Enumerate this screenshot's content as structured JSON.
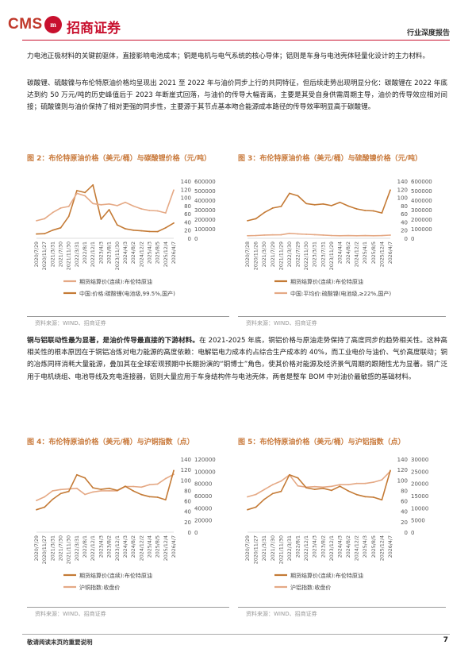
{
  "header": {
    "logo_latin": "CMS",
    "logo_badge": "m",
    "logo_cn": "招商证券",
    "report_type": "行业深度报告"
  },
  "paragraphs": {
    "p1": "力电池正极材料的关键前驱体，直接影响电池成本；铜是电机与电气系统的核心导体；铝则是车身与电池壳体轻量化设计的主力材料。",
    "p2": "碳酸锂、硫酸镍与布伦特原油价格均呈现出 2021 至 2022 年与油价同步上行的共同特征，但后续走势出现明显分化：碳酸锂在 2022 年底达到约 50 万元/吨的历史峰值后于 2023 年断崖式回落，与油价的传导大幅背离，主要是其受自身供需周期主导，油价的传导效应相对间接；硫酸镍则与油价保持了相对更强的同步性，主要源于其节点基本吻合能源成本路径的传导效率明显高于碳酸锂。",
    "p3_lead": "铜与铝联动性最为显著，是油价传导最直接的下游材料。",
    "p3": "在 2021-2025 年底，铜铝价格与原油走势保持了高度同步的趋势相关性。这种高相关性的根本原因在于铜铝冶炼对电力能源的高度依赖：电解铝电力成本约占综合生产成本的 40%，而工业电价与油价、气价高度联动；铜的冶炼同样消耗大量能源，叠加其在全球宏观预期中长期扮演的“铜博士”角色，使其价格对能源及经济景气周期的跟随性尤为显著。铜广泛用于电机绕组、电池导线及充电连接器，铝则大量应用于车身结构件与电池壳体，两者是整车 BOM 中对油价最敏感的基础材料。"
  },
  "figures": [
    {
      "title": "图 2：布伦特原油价格（美元/桶）与碳酸锂价格（元/吨）",
      "source": "资料来源：WIND、招商证券",
      "legend": [
        "期货结算价(连续):布伦特原油",
        "中国:价格:碳酸锂(电池级,99.5%,国产)"
      ],
      "colors": {
        "oil": "#e5a985",
        "other": "#c47a35"
      }
    },
    {
      "title": "图 3：布伦特原油价格（美元/桶）与硫酸镍价格（元/吨）",
      "source": "资料来源：WIND、招商证券",
      "legend": [
        "期货结算价(连续):布伦特原油",
        "中国:平均价:硫酸镍(电池级,≥22%,国产)"
      ],
      "colors": {
        "oil": "#c47a35",
        "other": "#e5a985"
      }
    },
    {
      "title": "图 4：布伦特原油价格（美元/桶）与沪铜指数（点）",
      "source": "资料来源：WIND、招商证券",
      "legend": [
        "期货结算价(连续):布伦特原油",
        "沪铜指数:收盘价"
      ],
      "colors": {
        "oil": "#c47a35",
        "other": "#e5a985"
      }
    },
    {
      "title": "图 5：布伦特原油价格（美元/桶）与沪铝指数（点）",
      "source": "资料来源：WIND、招商证券",
      "legend": [
        "期货结算价(连续):布伦特原油",
        "沪铝指数:收盘价"
      ],
      "colors": {
        "oil": "#c47a35",
        "other": "#e5a985"
      }
    }
  ],
  "chart_data": [
    {
      "type": "line",
      "x_ticks": [
        "2020/7/29",
        "2020/11/27",
        "2021/3/31",
        "2021/7/30",
        "2021/11/30",
        "2022/3/31",
        "2022/8/1",
        "2022/12/1",
        "2023/4/3",
        "2023/8/1",
        "2023/11/30",
        "2024/4/3",
        "2024/8/2",
        "2024/12/2",
        "2025/4/3",
        "2025/8/5",
        "2025/12/4",
        "2026/4/7"
      ],
      "y_left": [
        0,
        20,
        40,
        60,
        80,
        100,
        120,
        140
      ],
      "y_right": [
        0,
        100000,
        200000,
        300000,
        400000,
        500000,
        600000
      ],
      "series": [
        {
          "name": "期货结算价(连续):布伦特原油",
          "axis": "left",
          "values": [
            43,
            48,
            63,
            74,
            78,
            110,
            104,
            85,
            82,
            84,
            80,
            88,
            79,
            72,
            68,
            67,
            62,
            118
          ]
        },
        {
          "name": "中国:价格:碳酸锂(电池级,99.5%,国产)",
          "axis": "right",
          "values": [
            45000,
            48000,
            85000,
            110000,
            230000,
            500000,
            480000,
            560000,
            200000,
            300000,
            140000,
            100000,
            85000,
            78000,
            72000,
            70000,
            110000,
            160000
          ]
        }
      ]
    },
    {
      "type": "line",
      "x_ticks": [
        "2020/7/28",
        "2020/11/26",
        "2021/3/30",
        "2021/7/29",
        "2021/11/29",
        "2022/3/30",
        "2022/7/29",
        "2022/11/30",
        "2023/3/31",
        "2023/7/31",
        "2023/11/29",
        "2024/4/4",
        "2024/8/2",
        "2024/12/2",
        "2025/4/1",
        "2025/8/5",
        "2025/12/4",
        "2026/4/7"
      ],
      "y_left": [
        0,
        20,
        40,
        60,
        80,
        100,
        120,
        140
      ],
      "y_right": [
        0,
        100000,
        200000,
        300000,
        400000,
        500000,
        600000
      ],
      "series": [
        {
          "name": "期货结算价(连续):布伦特原油",
          "axis": "left",
          "values": [
            43,
            48,
            63,
            74,
            78,
            110,
            104,
            85,
            82,
            84,
            80,
            88,
            79,
            72,
            68,
            67,
            62,
            118
          ]
        },
        {
          "name": "中国:平均价:硫酸镍(电池级,≥22%,国产)",
          "axis": "right",
          "values": [
            27000,
            29000,
            34000,
            36000,
            37000,
            52000,
            46000,
            42000,
            38000,
            34000,
            29000,
            27000,
            28000,
            27000,
            28000,
            27000,
            28000,
            33000
          ]
        }
      ]
    },
    {
      "type": "line",
      "x_ticks": [
        "2020/7/29",
        "2020/11/27",
        "2021/3/31",
        "2021/7/30",
        "2021/11/30",
        "2022/3/31",
        "2022/8/1",
        "2022/12/1",
        "2023/4/3",
        "2023/8/2",
        "2023/12/1",
        "2024/4/3",
        "2024/8/2",
        "2024/12/2",
        "2025/4/4",
        "2025/8/5",
        "2025/12/4",
        "2026/4/7"
      ],
      "y_left": [
        0,
        20,
        40,
        60,
        80,
        100,
        120,
        140
      ],
      "y_right": [
        0,
        20000,
        40000,
        60000,
        80000,
        100000,
        120000
      ],
      "series": [
        {
          "name": "期货结算价(连续):布伦特原油",
          "axis": "left",
          "values": [
            43,
            48,
            63,
            74,
            78,
            110,
            104,
            85,
            82,
            84,
            80,
            88,
            79,
            72,
            68,
            67,
            62,
            118
          ]
        },
        {
          "name": "沪铜指数:收盘价",
          "axis": "right",
          "values": [
            52000,
            58000,
            68000,
            70000,
            71000,
            72000,
            62000,
            66000,
            68000,
            68000,
            68000,
            75000,
            75000,
            74000,
            78000,
            79000,
            88000,
            95000
          ]
        }
      ]
    },
    {
      "type": "line",
      "x_ticks": [
        "2020/7/29",
        "2020/11/27",
        "2021/3/31",
        "2021/7/30",
        "2021/11/30",
        "2022/3/31",
        "2022/8/1",
        "2022/12/1",
        "2023/4/3",
        "2023/8/2",
        "2023/12/1",
        "2024/4/3",
        "2024/8/2",
        "2024/12/2",
        "2025/4/3",
        "2025/8/5",
        "2025/12/4",
        "2026/4/7"
      ],
      "y_left": [
        0,
        20,
        40,
        60,
        80,
        100,
        120,
        140
      ],
      "y_right": [
        0,
        5000,
        10000,
        15000,
        20000,
        25000,
        30000
      ],
      "series": [
        {
          "name": "期货结算价(连续):布伦特原油",
          "axis": "left",
          "values": [
            43,
            48,
            63,
            74,
            78,
            110,
            104,
            85,
            82,
            84,
            80,
            88,
            79,
            72,
            68,
            67,
            62,
            118
          ]
        },
        {
          "name": "沪铝指数:收盘价",
          "axis": "right",
          "values": [
            14500,
            15500,
            17500,
            19500,
            21000,
            23500,
            19000,
            18500,
            18700,
            18500,
            18800,
            19500,
            19500,
            20000,
            20000,
            20500,
            21500,
            25000
          ]
        }
      ]
    }
  ],
  "footer": {
    "disclaimer": "敬请阅读末页的重要说明",
    "page": "7"
  }
}
